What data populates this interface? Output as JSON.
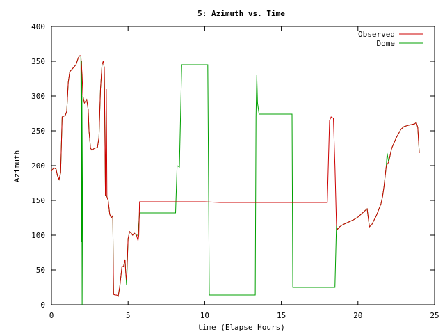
{
  "chart_data": {
    "type": "line",
    "title": "5: Azimuth vs. Time",
    "xlabel": "time (Elapse Hours)",
    "ylabel": "Azimuth",
    "xlim": [
      0,
      25
    ],
    "ylim": [
      0,
      400
    ],
    "xticks": [
      0,
      5,
      10,
      15,
      20,
      25
    ],
    "yticks": [
      0,
      50,
      100,
      150,
      200,
      250,
      300,
      350,
      400
    ],
    "grid": false,
    "legend_position": "top-right",
    "series": [
      {
        "name": "Observed",
        "color": "#cc0000",
        "points": [
          [
            0,
            192
          ],
          [
            0.15,
            197
          ],
          [
            0.3,
            195
          ],
          [
            0.4,
            185
          ],
          [
            0.5,
            180
          ],
          [
            0.6,
            190
          ],
          [
            0.7,
            270
          ],
          [
            0.9,
            272
          ],
          [
            1.0,
            278
          ],
          [
            1.1,
            320
          ],
          [
            1.2,
            335
          ],
          [
            1.4,
            340
          ],
          [
            1.6,
            345
          ],
          [
            1.75,
            355
          ],
          [
            1.85,
            358
          ],
          [
            1.92,
            358
          ],
          [
            2.0,
            330
          ],
          [
            2.05,
            300
          ],
          [
            2.15,
            290
          ],
          [
            2.3,
            295
          ],
          [
            2.4,
            280
          ],
          [
            2.45,
            250
          ],
          [
            2.55,
            225
          ],
          [
            2.65,
            222
          ],
          [
            2.8,
            225
          ],
          [
            3.0,
            226
          ],
          [
            3.1,
            240
          ],
          [
            3.2,
            310
          ],
          [
            3.3,
            345
          ],
          [
            3.38,
            350
          ],
          [
            3.45,
            340
          ],
          [
            3.52,
            157
          ],
          [
            3.58,
            310
          ],
          [
            3.62,
            155
          ],
          [
            3.7,
            150
          ],
          [
            3.8,
            130
          ],
          [
            3.9,
            125
          ],
          [
            4.0,
            128
          ],
          [
            4.05,
            15
          ],
          [
            4.15,
            14
          ],
          [
            4.25,
            14
          ],
          [
            4.35,
            12
          ],
          [
            4.45,
            25
          ],
          [
            4.55,
            45
          ],
          [
            4.6,
            55
          ],
          [
            4.7,
            55
          ],
          [
            4.8,
            65
          ],
          [
            4.85,
            45
          ],
          [
            4.9,
            35
          ],
          [
            5.0,
            95
          ],
          [
            5.1,
            105
          ],
          [
            5.2,
            103
          ],
          [
            5.3,
            100
          ],
          [
            5.4,
            103
          ],
          [
            5.55,
            100
          ],
          [
            5.65,
            92
          ],
          [
            5.7,
            100
          ],
          [
            5.75,
            148
          ],
          [
            6.5,
            148
          ],
          [
            8.0,
            148
          ],
          [
            10.0,
            148
          ],
          [
            11.0,
            147
          ],
          [
            12.5,
            147
          ],
          [
            14.0,
            147
          ],
          [
            16.0,
            147
          ],
          [
            17.0,
            147
          ],
          [
            17.9,
            147
          ],
          [
            18.0,
            147
          ],
          [
            18.15,
            265
          ],
          [
            18.25,
            270
          ],
          [
            18.4,
            268
          ],
          [
            18.5,
            200
          ],
          [
            18.6,
            115
          ],
          [
            18.65,
            108
          ],
          [
            18.8,
            112
          ],
          [
            19.0,
            115
          ],
          [
            19.3,
            118
          ],
          [
            19.7,
            122
          ],
          [
            20.0,
            126
          ],
          [
            20.3,
            132
          ],
          [
            20.5,
            136
          ],
          [
            20.6,
            138
          ],
          [
            20.75,
            112
          ],
          [
            20.9,
            115
          ],
          [
            21.2,
            128
          ],
          [
            21.5,
            145
          ],
          [
            21.6,
            155
          ],
          [
            21.7,
            170
          ],
          [
            21.85,
            200
          ],
          [
            22.0,
            205
          ],
          [
            22.2,
            225
          ],
          [
            22.5,
            240
          ],
          [
            22.8,
            252
          ],
          [
            23.0,
            256
          ],
          [
            23.3,
            258
          ],
          [
            23.7,
            260
          ],
          [
            23.8,
            262
          ],
          [
            23.9,
            255
          ],
          [
            24.0,
            218
          ]
        ]
      },
      {
        "name": "Dome",
        "color": "#00a000",
        "points": [
          [
            0,
            192
          ],
          [
            0.15,
            197
          ],
          [
            0.3,
            195
          ],
          [
            0.4,
            185
          ],
          [
            0.5,
            180
          ],
          [
            0.6,
            190
          ],
          [
            0.7,
            270
          ],
          [
            0.9,
            272
          ],
          [
            1.0,
            278
          ],
          [
            1.1,
            320
          ],
          [
            1.2,
            335
          ],
          [
            1.4,
            340
          ],
          [
            1.6,
            345
          ],
          [
            1.75,
            355
          ],
          [
            1.85,
            358
          ],
          [
            1.92,
            358
          ],
          [
            1.95,
            90
          ],
          [
            1.97,
            350
          ],
          [
            2.0,
            0
          ],
          [
            2.05,
            300
          ],
          [
            2.15,
            290
          ],
          [
            2.3,
            295
          ],
          [
            2.4,
            280
          ],
          [
            2.45,
            250
          ],
          [
            2.55,
            225
          ],
          [
            2.65,
            222
          ],
          [
            2.8,
            225
          ],
          [
            3.0,
            226
          ],
          [
            3.1,
            240
          ],
          [
            3.2,
            310
          ],
          [
            3.3,
            345
          ],
          [
            3.38,
            350
          ],
          [
            3.45,
            340
          ],
          [
            3.52,
            157
          ],
          [
            3.58,
            157
          ],
          [
            3.62,
            155
          ],
          [
            3.7,
            150
          ],
          [
            3.8,
            130
          ],
          [
            3.9,
            125
          ],
          [
            4.0,
            128
          ],
          [
            4.05,
            15
          ],
          [
            4.15,
            14
          ],
          [
            4.25,
            14
          ],
          [
            4.35,
            12
          ],
          [
            4.45,
            25
          ],
          [
            4.55,
            45
          ],
          [
            4.6,
            55
          ],
          [
            4.7,
            55
          ],
          [
            4.8,
            65
          ],
          [
            4.85,
            45
          ],
          [
            4.9,
            28
          ],
          [
            5.0,
            95
          ],
          [
            5.1,
            105
          ],
          [
            5.2,
            103
          ],
          [
            5.3,
            100
          ],
          [
            5.4,
            103
          ],
          [
            5.55,
            100
          ],
          [
            5.65,
            100
          ],
          [
            5.75,
            132
          ],
          [
            8.1,
            132
          ],
          [
            8.2,
            200
          ],
          [
            8.35,
            198
          ],
          [
            8.5,
            345
          ],
          [
            10.2,
            345
          ],
          [
            10.3,
            14
          ],
          [
            13.3,
            14
          ],
          [
            13.35,
            270
          ],
          [
            13.4,
            330
          ],
          [
            13.45,
            290
          ],
          [
            13.55,
            274
          ],
          [
            15.7,
            274
          ],
          [
            15.75,
            25
          ],
          [
            18.5,
            25
          ],
          [
            18.6,
            115
          ],
          [
            18.65,
            108
          ],
          [
            18.8,
            112
          ],
          [
            19.0,
            115
          ],
          [
            19.3,
            118
          ],
          [
            19.7,
            122
          ],
          [
            20.0,
            126
          ],
          [
            20.3,
            132
          ],
          [
            20.5,
            136
          ],
          [
            20.6,
            138
          ],
          [
            20.75,
            112
          ],
          [
            20.9,
            115
          ],
          [
            21.2,
            128
          ],
          [
            21.5,
            145
          ],
          [
            21.6,
            155
          ],
          [
            21.7,
            170
          ],
          [
            21.85,
            200
          ],
          [
            21.9,
            218
          ],
          [
            22.0,
            205
          ],
          [
            22.2,
            225
          ],
          [
            22.5,
            240
          ],
          [
            22.8,
            252
          ],
          [
            23.0,
            256
          ],
          [
            23.3,
            258
          ],
          [
            23.7,
            260
          ],
          [
            23.8,
            262
          ],
          [
            23.9,
            255
          ],
          [
            24.0,
            218
          ]
        ]
      }
    ]
  }
}
